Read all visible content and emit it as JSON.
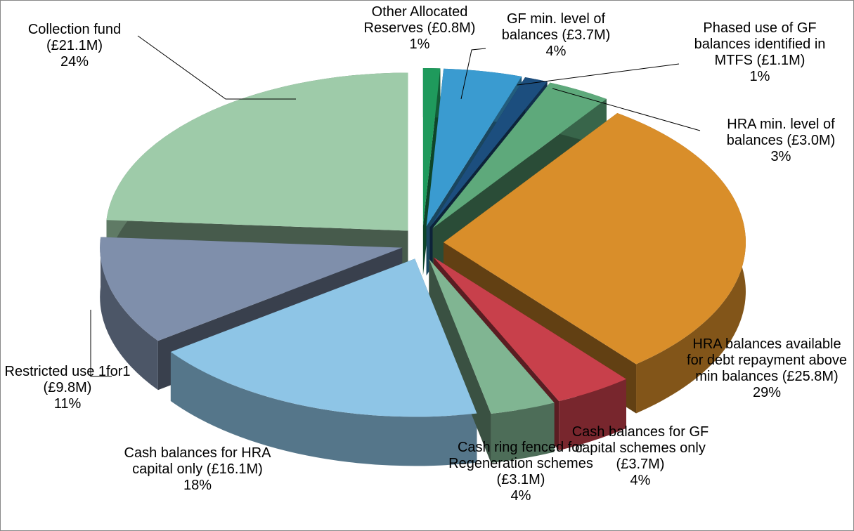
{
  "chart_data": {
    "type": "pie3d",
    "categories": [
      "Other Allocated Reserves",
      "GF min. level of balances",
      "Phased use of GF balances identified in MTFS",
      "HRA min. level of balances",
      "HRA balances available for debt repayment above min balances",
      "Cash balances for GF capital schemes only",
      "Cash ring fenced for Regeneration schemes",
      "Cash balances for HRA capital only",
      "Restricted use 1for1",
      "Collection fund"
    ],
    "amounts": [
      0.8,
      3.7,
      1.1,
      3.0,
      25.8,
      3.7,
      3.1,
      16.1,
      9.8,
      21.1
    ],
    "amount_labels": [
      "(£0.8M)",
      "(£3.7M)",
      "(£1.1M)",
      "(£3.0M)",
      "(£25.8M)",
      "(£3.7M)",
      "(£3.1M)",
      "(£16.1M)",
      "(£9.8M)",
      "(£21.1M)"
    ],
    "values": [
      1,
      4,
      1,
      3,
      29,
      4,
      4,
      18,
      11,
      24
    ],
    "value_labels": [
      "1%",
      "4%",
      "1%",
      "3%",
      "29%",
      "4%",
      "4%",
      "18%",
      "11%",
      "24%"
    ],
    "colors": [
      "#1f9a5c",
      "#3a9bd0",
      "#1c4e7e",
      "#5ea97b",
      "#d98e2a",
      "#c8404b",
      "#80b592",
      "#8ec5e6",
      "#7f8fab",
      "#9ecba9"
    ]
  }
}
